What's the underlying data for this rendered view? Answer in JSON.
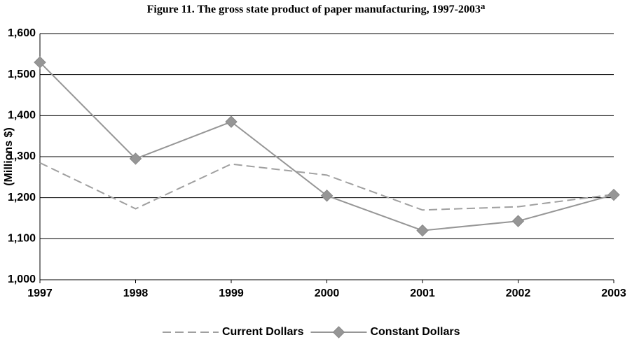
{
  "chart_data": {
    "type": "line",
    "title": "Figure 11. The gross state product of paper manufacturing, 1997-2003",
    "title_note": "a",
    "y_label": "(Millions $)",
    "categories": [
      "1997",
      "1998",
      "1999",
      "2000",
      "2001",
      "2002",
      "2003"
    ],
    "series": [
      {
        "name": "Current Dollars",
        "color": "#a0a0a0",
        "dash": true,
        "marker": null,
        "values": [
          1285,
          1173,
          1282,
          1255,
          1170,
          1178,
          1208
        ]
      },
      {
        "name": "Constant Dollars",
        "color": "#969696",
        "dash": false,
        "marker": "diamond",
        "values": [
          1530,
          1295,
          1385,
          1205,
          1120,
          1143,
          1207
        ]
      }
    ],
    "ylim": [
      1000,
      1600
    ],
    "yticks": [
      {
        "value": 1000,
        "label": "1,000"
      },
      {
        "value": 1100,
        "label": "1,100"
      },
      {
        "value": 1200,
        "label": "1,200"
      },
      {
        "value": 1300,
        "label": "1,300"
      },
      {
        "value": 1400,
        "label": "1,400"
      },
      {
        "value": 1500,
        "label": "1,500"
      },
      {
        "value": 1600,
        "label": "1,600"
      }
    ],
    "grid": true,
    "legend": "bottom"
  }
}
